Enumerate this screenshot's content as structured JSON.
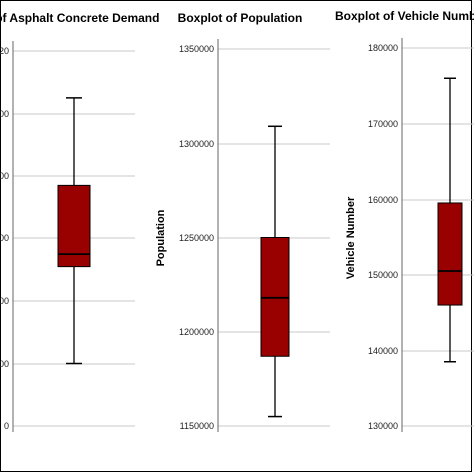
{
  "chart_data": [
    {
      "type": "boxplot",
      "title": "ot of Asphalt Concrete Demand",
      "ylabel": "",
      "ytick_labels": [
        "20",
        "00",
        "00",
        "00",
        "00",
        "00",
        "0"
      ],
      "box_color": "#990000",
      "box": {
        "whisker_low": 10,
        "q1": 25.5,
        "median": 27.5,
        "q3": 38.5,
        "whisker_high": 52.5
      },
      "ylim": [
        0,
        60
      ]
    },
    {
      "type": "boxplot",
      "title": "Boxplot of Population",
      "ylabel": "Population",
      "ytick_labels": [
        "1350000",
        "1300000",
        "1250000",
        "1200000",
        "1150000"
      ],
      "ytick_values": [
        1350000,
        1300000,
        1250000,
        1200000,
        1150000
      ],
      "box_color": "#990000",
      "box": {
        "whisker_low": 1155000,
        "q1": 1187000,
        "median": 1218000,
        "q3": 1250000,
        "whisker_high": 1309000
      },
      "ylim": [
        1150000,
        1350000
      ]
    },
    {
      "type": "boxplot",
      "title": "Boxplot of Vehicle Numbe",
      "ylabel": "Vehicle Number",
      "ytick_labels": [
        "180000",
        "170000",
        "160000",
        "150000",
        "140000",
        "130000"
      ],
      "ytick_values": [
        180000,
        170000,
        160000,
        150000,
        140000,
        130000
      ],
      "box_color": "#990000",
      "box": {
        "whisker_low": 138500,
        "q1": 146000,
        "median": 150500,
        "q3": 159500,
        "whisker_high": 176000
      },
      "ylim": [
        130000,
        180000
      ]
    }
  ]
}
